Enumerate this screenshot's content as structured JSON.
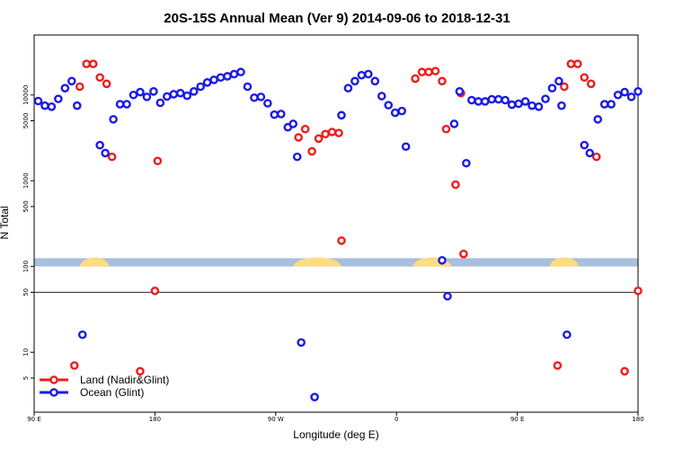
{
  "chart_data": {
    "type": "scatter",
    "title": "20S-15S Annual Mean (Ver 9)   2014-09-06 to 2018-12-31",
    "xlabel": "Longitude (deg E)",
    "ylabel": "N Total",
    "xlim": [
      90,
      540
    ],
    "ylim": [
      2,
      50000
    ],
    "yscale": "log",
    "reference_line_y": 50,
    "xticks": [
      {
        "value": 90,
        "label": "90 E"
      },
      {
        "value": 180,
        "label": "180"
      },
      {
        "value": 270,
        "label": "90 W"
      },
      {
        "value": 360,
        "label": "0"
      },
      {
        "value": 450,
        "label": "90 E"
      },
      {
        "value": 540,
        "label": "180"
      }
    ],
    "yticks": [
      {
        "value": 5,
        "label": "5"
      },
      {
        "value": 10,
        "label": "10"
      },
      {
        "value": 50,
        "label": "50"
      },
      {
        "value": 100,
        "label": "100"
      },
      {
        "value": 500,
        "label": "500"
      },
      {
        "value": 1000,
        "label": "1000"
      },
      {
        "value": 5000,
        "label": "5000"
      },
      {
        "value": 10000,
        "label": "10000"
      }
    ],
    "land_map_colors": {
      "ocean": "#a9bfdd",
      "land": "#fedc80"
    },
    "land_segments": [
      [
        124,
        146
      ],
      [
        283,
        319
      ],
      [
        372,
        401
      ],
      [
        474,
        496
      ]
    ],
    "series": [
      {
        "name": "Land (Nadir&Glint)",
        "color": "#ee1c1c",
        "points": [
          {
            "x": 120,
            "y": 7
          },
          {
            "x": 124,
            "y": 12500
          },
          {
            "x": 129,
            "y": 23000
          },
          {
            "x": 134,
            "y": 23000
          },
          {
            "x": 139,
            "y": 16000
          },
          {
            "x": 144,
            "y": 13500
          },
          {
            "x": 148,
            "y": 1900
          },
          {
            "x": 169,
            "y": 6
          },
          {
            "x": 180,
            "y": 52
          },
          {
            "x": 182,
            "y": 1700
          },
          {
            "x": 287,
            "y": 3200
          },
          {
            "x": 292,
            "y": 4000
          },
          {
            "x": 297,
            "y": 2200
          },
          {
            "x": 302,
            "y": 3100
          },
          {
            "x": 307,
            "y": 3500
          },
          {
            "x": 312,
            "y": 3700
          },
          {
            "x": 317,
            "y": 3600
          },
          {
            "x": 319,
            "y": 200
          },
          {
            "x": 374,
            "y": 15500
          },
          {
            "x": 379,
            "y": 18500
          },
          {
            "x": 384,
            "y": 18500
          },
          {
            "x": 389,
            "y": 19000
          },
          {
            "x": 394,
            "y": 14500
          },
          {
            "x": 397,
            "y": 4000
          },
          {
            "x": 404,
            "y": 900
          },
          {
            "x": 408,
            "y": 10500
          },
          {
            "x": 410,
            "y": 140
          },
          {
            "x": 480,
            "y": 7
          },
          {
            "x": 485,
            "y": 12500
          },
          {
            "x": 490,
            "y": 23000
          },
          {
            "x": 495,
            "y": 23000
          },
          {
            "x": 500,
            "y": 16000
          },
          {
            "x": 505,
            "y": 13500
          },
          {
            "x": 509,
            "y": 1900
          },
          {
            "x": 530,
            "y": 6
          },
          {
            "x": 540,
            "y": 52
          }
        ]
      },
      {
        "name": "Ocean (Glint)",
        "color": "#1a1ae6",
        "points": [
          {
            "x": 93,
            "y": 8500
          },
          {
            "x": 98,
            "y": 7500
          },
          {
            "x": 103,
            "y": 7300
          },
          {
            "x": 108,
            "y": 9000
          },
          {
            "x": 113,
            "y": 12000
          },
          {
            "x": 118,
            "y": 14500
          },
          {
            "x": 122,
            "y": 7500
          },
          {
            "x": 126,
            "y": 16
          },
          {
            "x": 139,
            "y": 2600
          },
          {
            "x": 143,
            "y": 2100
          },
          {
            "x": 149,
            "y": 5200
          },
          {
            "x": 154,
            "y": 7800
          },
          {
            "x": 159,
            "y": 7800
          },
          {
            "x": 164,
            "y": 10000
          },
          {
            "x": 169,
            "y": 10800
          },
          {
            "x": 174,
            "y": 9500
          },
          {
            "x": 179,
            "y": 11000
          },
          {
            "x": 184,
            "y": 8100
          },
          {
            "x": 189,
            "y": 9600
          },
          {
            "x": 194,
            "y": 10200
          },
          {
            "x": 199,
            "y": 10500
          },
          {
            "x": 204,
            "y": 9800
          },
          {
            "x": 209,
            "y": 11000
          },
          {
            "x": 214,
            "y": 12500
          },
          {
            "x": 219,
            "y": 14000
          },
          {
            "x": 224,
            "y": 15000
          },
          {
            "x": 229,
            "y": 16000
          },
          {
            "x": 234,
            "y": 16500
          },
          {
            "x": 239,
            "y": 17500
          },
          {
            "x": 244,
            "y": 18500
          },
          {
            "x": 249,
            "y": 12500
          },
          {
            "x": 254,
            "y": 9300
          },
          {
            "x": 259,
            "y": 9500
          },
          {
            "x": 264,
            "y": 8000
          },
          {
            "x": 269,
            "y": 5900
          },
          {
            "x": 274,
            "y": 6000
          },
          {
            "x": 279,
            "y": 4200
          },
          {
            "x": 283,
            "y": 4600
          },
          {
            "x": 286,
            "y": 1900
          },
          {
            "x": 289,
            "y": 13
          },
          {
            "x": 299,
            "y": 3
          },
          {
            "x": 319,
            "y": 5800
          },
          {
            "x": 324,
            "y": 12000
          },
          {
            "x": 329,
            "y": 14500
          },
          {
            "x": 334,
            "y": 17000
          },
          {
            "x": 339,
            "y": 17500
          },
          {
            "x": 344,
            "y": 14500
          },
          {
            "x": 349,
            "y": 9700
          },
          {
            "x": 354,
            "y": 7600
          },
          {
            "x": 359,
            "y": 6200
          },
          {
            "x": 364,
            "y": 6500
          },
          {
            "x": 367,
            "y": 2500
          },
          {
            "x": 394,
            "y": 118
          },
          {
            "x": 398,
            "y": 45
          },
          {
            "x": 403,
            "y": 4600
          },
          {
            "x": 407,
            "y": 11000
          },
          {
            "x": 412,
            "y": 1600
          },
          {
            "x": 416,
            "y": 8700
          },
          {
            "x": 421,
            "y": 8400
          },
          {
            "x": 426,
            "y": 8400
          },
          {
            "x": 431,
            "y": 8900
          },
          {
            "x": 436,
            "y": 8900
          },
          {
            "x": 441,
            "y": 8700
          },
          {
            "x": 446,
            "y": 7700
          },
          {
            "x": 451,
            "y": 7900
          },
          {
            "x": 456,
            "y": 8400
          },
          {
            "x": 461,
            "y": 7500
          },
          {
            "x": 466,
            "y": 7300
          },
          {
            "x": 471,
            "y": 9000
          },
          {
            "x": 476,
            "y": 12000
          },
          {
            "x": 481,
            "y": 14500
          },
          {
            "x": 483,
            "y": 7500
          },
          {
            "x": 487,
            "y": 16
          },
          {
            "x": 500,
            "y": 2600
          },
          {
            "x": 504,
            "y": 2100
          },
          {
            "x": 510,
            "y": 5200
          },
          {
            "x": 515,
            "y": 7800
          },
          {
            "x": 520,
            "y": 7800
          },
          {
            "x": 525,
            "y": 10000
          },
          {
            "x": 530,
            "y": 10800
          },
          {
            "x": 535,
            "y": 9500
          },
          {
            "x": 540,
            "y": 11000
          }
        ]
      }
    ],
    "legend": [
      {
        "label": "Land (Nadir&Glint)",
        "color": "#ee1c1c"
      },
      {
        "label": "Ocean (Glint)",
        "color": "#1a1ae6"
      }
    ],
    "legend_position": "bottom-left"
  }
}
